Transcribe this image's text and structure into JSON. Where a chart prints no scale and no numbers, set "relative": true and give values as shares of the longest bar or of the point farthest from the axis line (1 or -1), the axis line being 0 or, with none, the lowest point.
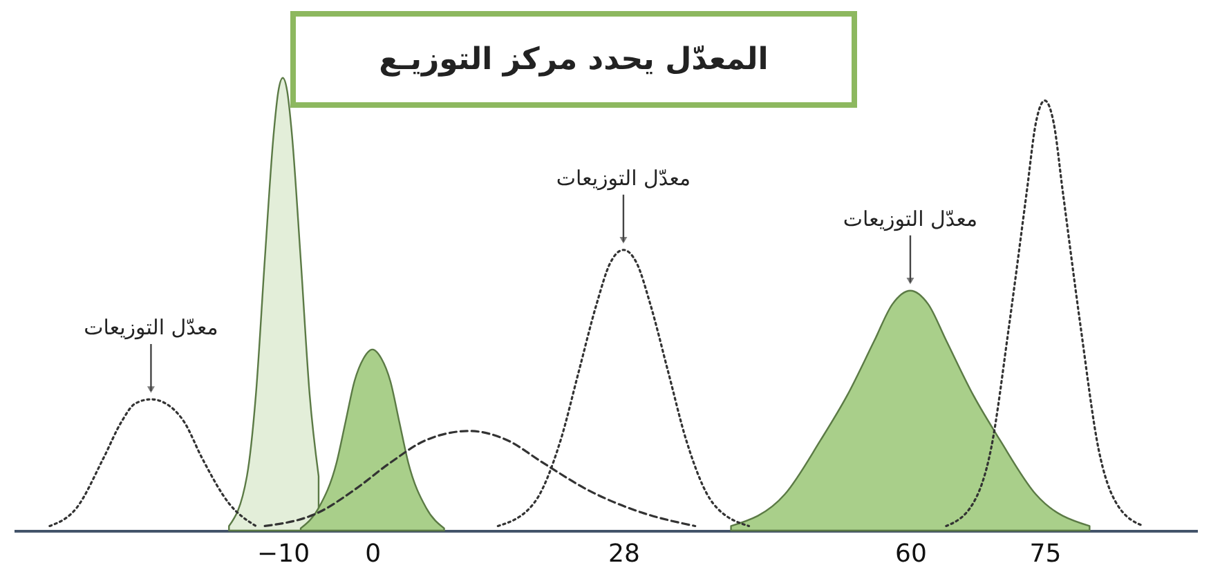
{
  "chart_data": {
    "type": "line",
    "relative": true,
    "title": "المعدّل يحدد مركز التوزيـع",
    "xlim": [
      -40,
      92
    ],
    "xticks": [
      -10,
      0,
      28,
      60,
      75
    ],
    "annotations": [
      {
        "text": "معدّل التوزيعات",
        "x": -24.7,
        "y": 0.29
      },
      {
        "text": "معدّل التوزيعات",
        "x": 28,
        "y": 0.62
      },
      {
        "text": "معدّل التوزيعات",
        "x": 60,
        "y": 0.53
      }
    ],
    "series": [
      {
        "type": "line",
        "line_style": "dotted",
        "color": "#333333",
        "x": [
          -36,
          -33,
          -30,
          -28,
          -26.5,
          -24.7,
          -23,
          -21,
          -19,
          -16,
          -13
        ],
        "values": [
          0.01,
          0.05,
          0.16,
          0.24,
          0.28,
          0.29,
          0.28,
          0.24,
          0.16,
          0.06,
          0.01
        ]
      },
      {
        "type": "area",
        "color": "#e3eed9",
        "x": [
          -16,
          -14,
          -13,
          -12,
          -11,
          -10.5,
          -10,
          -9.5,
          -9,
          -8,
          -7,
          -6
        ],
        "values": [
          0.01,
          0.12,
          0.3,
          0.6,
          0.88,
          0.97,
          1,
          0.97,
          0.88,
          0.6,
          0.3,
          0.12
        ]
      },
      {
        "type": "area",
        "color": "#a9cf8a",
        "x": [
          -8,
          -6,
          -4,
          -3,
          -2,
          -1,
          0,
          1,
          2,
          3,
          4,
          6,
          8
        ],
        "values": [
          0.005,
          0.05,
          0.15,
          0.24,
          0.33,
          0.38,
          0.4,
          0.38,
          0.33,
          0.24,
          0.15,
          0.05,
          0.005
        ]
      },
      {
        "type": "line",
        "line_style": "dashed",
        "color": "#333333",
        "x": [
          -12,
          -6,
          -2,
          2,
          6,
          10.8,
          15,
          19,
          24,
          30,
          36
        ],
        "values": [
          0.01,
          0.04,
          0.09,
          0.15,
          0.2,
          0.22,
          0.2,
          0.15,
          0.09,
          0.04,
          0.01
        ]
      },
      {
        "type": "line",
        "line_style": "dotted",
        "color": "#333333",
        "x": [
          14,
          18,
          21,
          23,
          25,
          26.5,
          28,
          29.5,
          31,
          33,
          35,
          38,
          42
        ],
        "values": [
          0.01,
          0.06,
          0.2,
          0.35,
          0.5,
          0.59,
          0.62,
          0.59,
          0.5,
          0.35,
          0.2,
          0.06,
          0.01
        ]
      },
      {
        "type": "area",
        "color": "#a9cf8a",
        "x": [
          40,
          46,
          50,
          53,
          56,
          58,
          60,
          62,
          64,
          67,
          70,
          74,
          80
        ],
        "values": [
          0.01,
          0.08,
          0.2,
          0.3,
          0.42,
          0.5,
          0.53,
          0.5,
          0.42,
          0.3,
          0.2,
          0.08,
          0.01
        ]
      },
      {
        "type": "line",
        "line_style": "dotted",
        "color": "#333333",
        "x": [
          64,
          67,
          69,
          71,
          73,
          74,
          75,
          76,
          77,
          79,
          81,
          83,
          86
        ],
        "values": [
          0.01,
          0.06,
          0.18,
          0.45,
          0.75,
          0.9,
          0.95,
          0.9,
          0.75,
          0.45,
          0.18,
          0.06,
          0.01
        ]
      }
    ]
  }
}
